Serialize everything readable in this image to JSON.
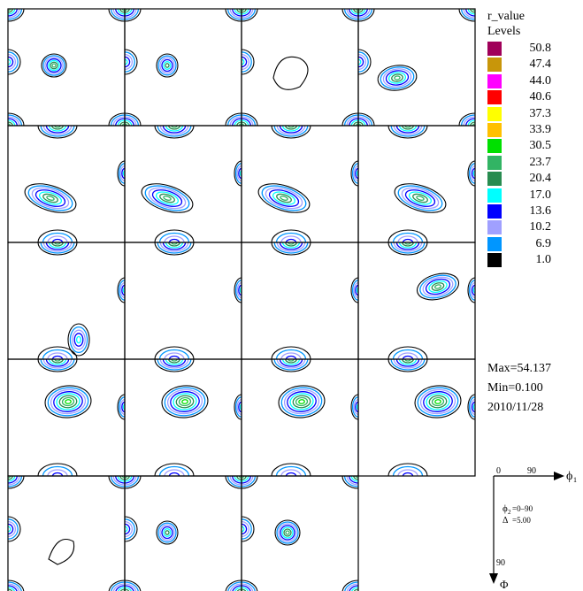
{
  "legend": {
    "title": "r_value",
    "subtitle": "Levels",
    "levels": [
      {
        "value": "50.8",
        "color": "#a0005a"
      },
      {
        "value": "47.4",
        "color": "#c8960a"
      },
      {
        "value": "44.0",
        "color": "#ff00ff"
      },
      {
        "value": "40.6",
        "color": "#ff0000"
      },
      {
        "value": "37.3",
        "color": "#ffff00"
      },
      {
        "value": "33.9",
        "color": "#ffc000"
      },
      {
        "value": "30.5",
        "color": "#00e000"
      },
      {
        "value": "23.7",
        "color": "#32b464"
      },
      {
        "value": "20.4",
        "color": "#288c50"
      },
      {
        "value": "17.0",
        "color": "#00ffff"
      },
      {
        "value": "13.6",
        "color": "#0000ff"
      },
      {
        "value": "10.2",
        "color": "#a0a0ff"
      },
      {
        "value": "6.9",
        "color": "#0096ff"
      },
      {
        "value": "1.0",
        "color": "#000000"
      }
    ]
  },
  "stats": {
    "max": "Max=54.137",
    "min": "Min=0.100",
    "date": "2010/11/28"
  },
  "key": {
    "x_start": "0",
    "x_end": "90",
    "x_label": "ϕ",
    "x_sub": "1",
    "y_end": "90",
    "y_label": "Φ",
    "section_label": "ϕ",
    "section_sub": "2",
    "section_range": "=0–90",
    "step_label": "Δ",
    "step_value": "=5.00"
  },
  "chart_data": {
    "type": "heatmap",
    "title": "r_value",
    "grid": {
      "rows": 5,
      "cols": 4,
      "sections": 19
    },
    "contour_levels": [
      1.0,
      6.9,
      10.2,
      13.6,
      17.0,
      20.4,
      23.7,
      30.5,
      33.9,
      37.3,
      40.6,
      44.0,
      47.4,
      50.8
    ],
    "max": 54.137,
    "min": 0.1,
    "phi2_range": [
      0,
      90
    ],
    "step": 5.0
  }
}
